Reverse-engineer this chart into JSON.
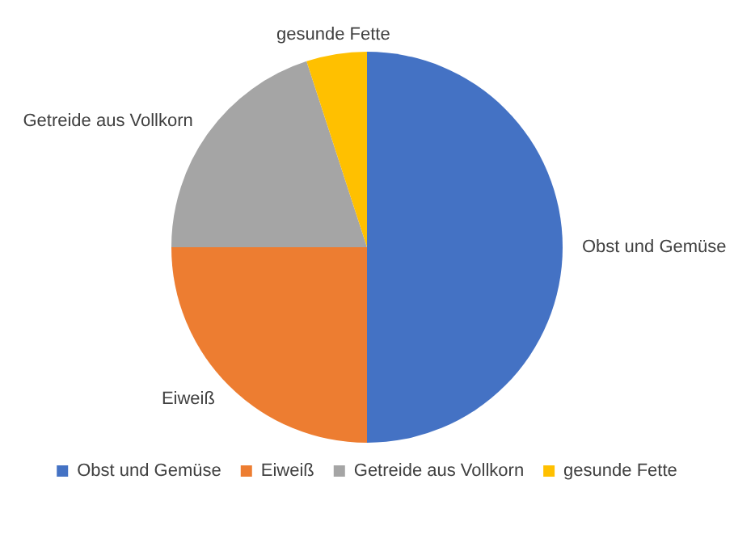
{
  "chart_data": {
    "type": "pie",
    "categories": [
      "Obst und Gemüse",
      "Eiweiß",
      "Getreide aus Vollkorn",
      "gesunde Fette"
    ],
    "values": [
      50,
      25,
      20,
      5
    ],
    "colors": [
      "#4472c4",
      "#ed7d31",
      "#a5a5a5",
      "#ffc000"
    ],
    "legend": "bottom"
  }
}
